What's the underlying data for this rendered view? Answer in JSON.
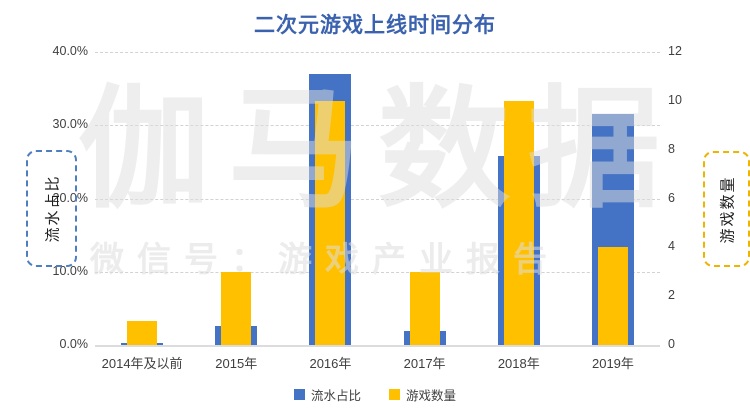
{
  "title": "二次元游戏上线时间分布",
  "watermark": {
    "brand": "伽马数据",
    "subtitle": "微信号：游戏产业报告"
  },
  "left_axis": {
    "title": "流水占比",
    "ticks": [
      "40.0%",
      "30.0%",
      "20.0%",
      "10.0%",
      "0.0%"
    ],
    "min": 0,
    "max": 40
  },
  "right_axis": {
    "title": "游戏数量",
    "ticks": [
      "12",
      "10",
      "8",
      "6",
      "4",
      "2",
      "0"
    ],
    "min": 0,
    "max": 12
  },
  "legend": [
    {
      "label": "流水占比",
      "color": "#4472C4"
    },
    {
      "label": "游戏数量",
      "color": "#FFC000"
    }
  ],
  "colors": {
    "bar_blue": "#4472C4",
    "bar_yellow": "#FFC000",
    "title_blue": "#3B62AE",
    "left_box_border": "#4D7EBF",
    "right_box_border": "#EDB400"
  },
  "chart_data": {
    "type": "bar",
    "title": "二次元游戏上线时间分布",
    "categories": [
      "2014年及以前",
      "2015年",
      "2016年",
      "2017年",
      "2018年",
      "2019年"
    ],
    "series": [
      {
        "name": "流水占比",
        "axis": "left",
        "unit": "%",
        "color": "#4472C4",
        "values": [
          0.3,
          2.6,
          37.0,
          1.9,
          25.8,
          31.5
        ]
      },
      {
        "name": "游戏数量",
        "axis": "right",
        "unit": "count",
        "color": "#FFC000",
        "values": [
          1,
          3,
          10,
          3,
          10,
          4
        ]
      }
    ],
    "left_ylabel": "流水占比",
    "right_ylabel": "游戏数量",
    "left_ylim": [
      0,
      40
    ],
    "right_ylim": [
      0,
      12
    ],
    "grid": true,
    "gridline_style": "dashed",
    "legend_position": "bottom",
    "bar_style": "overlapped: wide blue bar behind, narrow yellow bar in front, centered"
  }
}
